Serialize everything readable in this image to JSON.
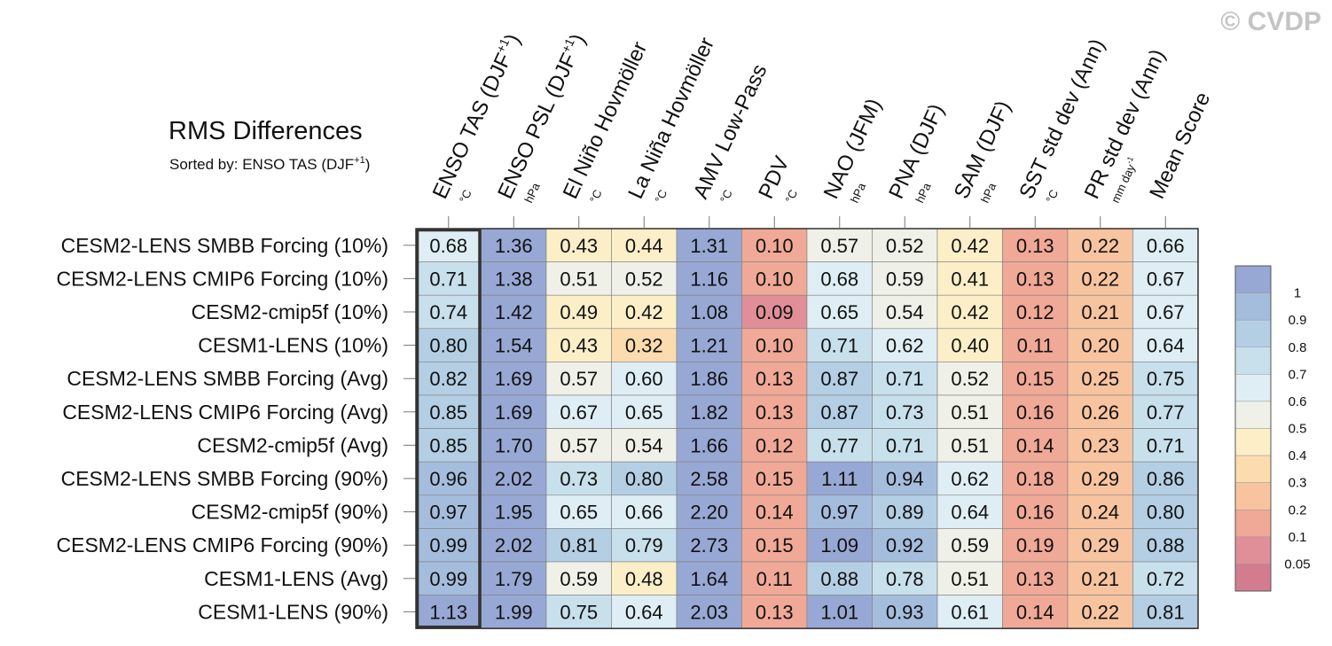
{
  "copyright": "© CVDP",
  "chart_data": {
    "type": "heatmap",
    "title": "RMS Differences",
    "subtitle": "Sorted by: ENSO TAS (DJF",
    "subtitle_sup": "+1",
    "subtitle_end": ")",
    "columns": [
      {
        "label": "ENSO TAS (DJF",
        "sup": "+1",
        "end": ")",
        "unit": "°C",
        "unit_sup": ""
      },
      {
        "label": "ENSO PSL (DJF",
        "sup": "+1",
        "end": ")",
        "unit": "hPa",
        "unit_sup": ""
      },
      {
        "label": "El Niño Hovmöller",
        "sup": "",
        "end": "",
        "unit": "°C",
        "unit_sup": ""
      },
      {
        "label": "La Niña Hovmöller",
        "sup": "",
        "end": "",
        "unit": "°C",
        "unit_sup": ""
      },
      {
        "label": "AMV Low-Pass",
        "sup": "",
        "end": "",
        "unit": "°C",
        "unit_sup": ""
      },
      {
        "label": "PDV",
        "sup": "",
        "end": "",
        "unit": "°C",
        "unit_sup": ""
      },
      {
        "label": "NAO (JFM)",
        "sup": "",
        "end": "",
        "unit": "hPa",
        "unit_sup": ""
      },
      {
        "label": "PNA (DJF)",
        "sup": "",
        "end": "",
        "unit": "hPa",
        "unit_sup": ""
      },
      {
        "label": "SAM (DJF)",
        "sup": "",
        "end": "",
        "unit": "hPa",
        "unit_sup": ""
      },
      {
        "label": "SST std dev (Ann)",
        "sup": "",
        "end": "",
        "unit": "°C",
        "unit_sup": ""
      },
      {
        "label": "PR std dev (Ann)",
        "sup": "",
        "end": "",
        "unit": "mm day",
        "unit_sup": "-1"
      },
      {
        "label": "Mean Score",
        "sup": "",
        "end": "",
        "unit": "",
        "unit_sup": ""
      }
    ],
    "rows": [
      "CESM2-LENS SMBB Forcing (10%)",
      "CESM2-LENS CMIP6 Forcing (10%)",
      "CESM2-cmip5f (10%)",
      "CESM1-LENS (10%)",
      "CESM2-LENS SMBB Forcing (Avg)",
      "CESM2-LENS CMIP6 Forcing (Avg)",
      "CESM2-cmip5f (Avg)",
      "CESM2-LENS SMBB Forcing (90%)",
      "CESM2-cmip5f (90%)",
      "CESM2-LENS CMIP6 Forcing (90%)",
      "CESM1-LENS (Avg)",
      "CESM1-LENS (90%)"
    ],
    "values": [
      [
        "0.68",
        "1.36",
        "0.43",
        "0.44",
        "1.31",
        "0.10",
        "0.57",
        "0.52",
        "0.42",
        "0.13",
        "0.22",
        "0.66"
      ],
      [
        "0.71",
        "1.38",
        "0.51",
        "0.52",
        "1.16",
        "0.10",
        "0.68",
        "0.59",
        "0.41",
        "0.13",
        "0.22",
        "0.67"
      ],
      [
        "0.74",
        "1.42",
        "0.49",
        "0.42",
        "1.08",
        "0.09",
        "0.65",
        "0.54",
        "0.42",
        "0.12",
        "0.21",
        "0.67"
      ],
      [
        "0.80",
        "1.54",
        "0.43",
        "0.32",
        "1.21",
        "0.10",
        "0.71",
        "0.62",
        "0.40",
        "0.11",
        "0.20",
        "0.64"
      ],
      [
        "0.82",
        "1.69",
        "0.57",
        "0.60",
        "1.86",
        "0.13",
        "0.87",
        "0.71",
        "0.52",
        "0.15",
        "0.25",
        "0.75"
      ],
      [
        "0.85",
        "1.69",
        "0.67",
        "0.65",
        "1.82",
        "0.13",
        "0.87",
        "0.73",
        "0.51",
        "0.16",
        "0.26",
        "0.77"
      ],
      [
        "0.85",
        "1.70",
        "0.57",
        "0.54",
        "1.66",
        "0.12",
        "0.77",
        "0.71",
        "0.51",
        "0.14",
        "0.23",
        "0.71"
      ],
      [
        "0.96",
        "2.02",
        "0.73",
        "0.80",
        "2.58",
        "0.15",
        "1.11",
        "0.94",
        "0.62",
        "0.18",
        "0.29",
        "0.86"
      ],
      [
        "0.97",
        "1.95",
        "0.65",
        "0.66",
        "2.20",
        "0.14",
        "0.97",
        "0.89",
        "0.64",
        "0.16",
        "0.24",
        "0.80"
      ],
      [
        "0.99",
        "2.02",
        "0.81",
        "0.79",
        "2.73",
        "0.15",
        "1.09",
        "0.92",
        "0.59",
        "0.19",
        "0.29",
        "0.88"
      ],
      [
        "0.99",
        "1.79",
        "0.59",
        "0.48",
        "1.64",
        "0.11",
        "0.88",
        "0.78",
        "0.51",
        "0.13",
        "0.21",
        "0.72"
      ],
      [
        "1.13",
        "1.99",
        "0.75",
        "0.64",
        "2.03",
        "0.13",
        "1.01",
        "0.93",
        "0.61",
        "0.14",
        "0.22",
        "0.81"
      ]
    ],
    "sorted_column": 0,
    "colorbar": {
      "ticks": [
        "1",
        "0.9",
        "0.8",
        "0.7",
        "0.6",
        "0.5",
        "0.4",
        "0.3",
        "0.2",
        "0.1",
        "0.05"
      ],
      "colors": [
        "#98a8d4",
        "#a5bddd",
        "#b4cfe4",
        "#c8e0ec",
        "#dfeef4",
        "#eff1e8",
        "#fcefc8",
        "#fcdcae",
        "#f8c4a0",
        "#f0a996",
        "#e08f98",
        "#d47c8f"
      ]
    }
  }
}
